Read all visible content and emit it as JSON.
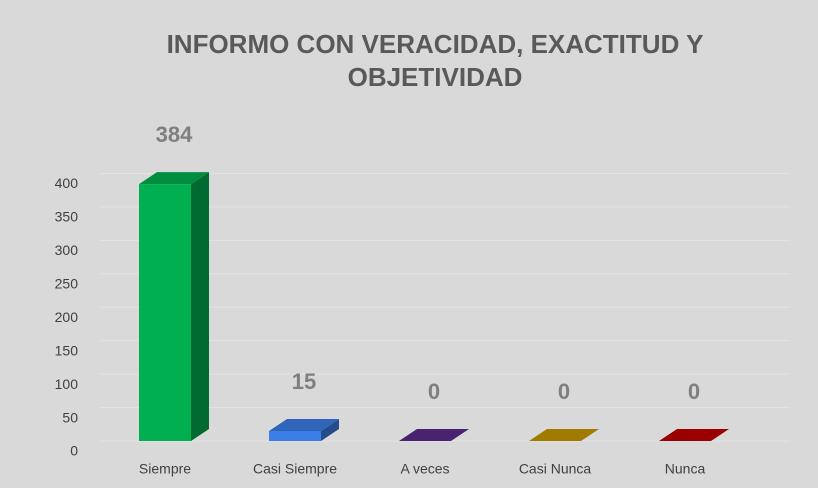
{
  "chart_data": {
    "type": "bar3d",
    "title": "INFORMO CON VERACIDAD, EXACTITUD Y OBJETIVIDAD",
    "categories": [
      "Siempre",
      "Casi Siempre",
      "A veces",
      "Casi Nunca",
      "Nunca"
    ],
    "values": [
      384,
      15,
      0,
      0,
      0
    ],
    "colors": [
      "#00b050",
      "#3c7ee8",
      "#5b2a8c",
      "#c99a00",
      "#c00000"
    ],
    "ylim": [
      0,
      450
    ],
    "yticks": [
      0,
      50,
      100,
      150,
      200,
      250,
      300,
      350,
      400
    ],
    "grid": true
  }
}
